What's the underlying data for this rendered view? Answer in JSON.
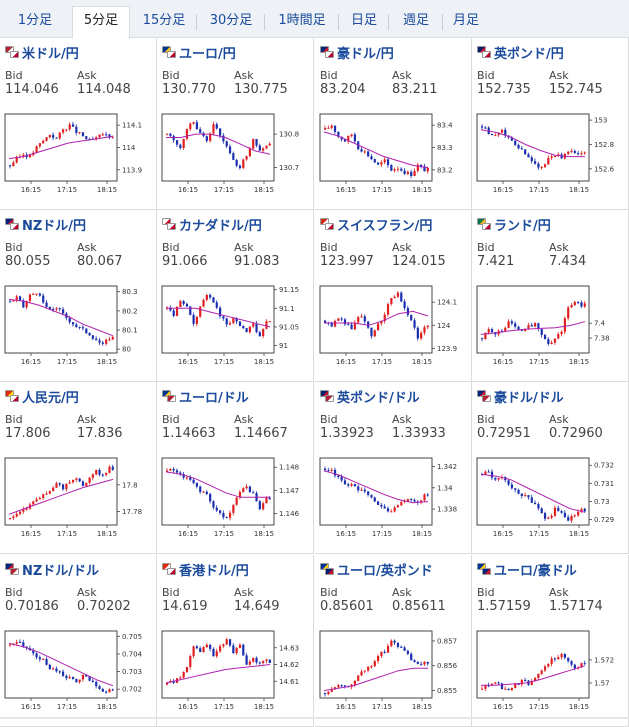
{
  "tabs": [
    {
      "label": "1分足",
      "active": false
    },
    {
      "label": "5分足",
      "active": true
    },
    {
      "label": "15分足",
      "active": false
    },
    {
      "label": "30分足",
      "active": false
    },
    {
      "label": "1時間足",
      "active": false
    },
    {
      "label": "日足",
      "active": false
    },
    {
      "label": "週足",
      "active": false
    },
    {
      "label": "月足",
      "active": false
    }
  ],
  "bid_label": "Bid",
  "ask_label": "Ask",
  "x_ticks": [
    "16:15",
    "17:15",
    "18:15"
  ],
  "colors": {
    "up": "#e02020",
    "down": "#1a2fb0",
    "ma": "#b020b0",
    "link": "#1a4a9c"
  },
  "pairs": [
    {
      "name": "米ドル/円",
      "flags": [
        "us",
        "jp"
      ],
      "bid": "114.046",
      "ask": "114.048",
      "chart_data": {
        "type": "candlestick",
        "ylim": [
          113.85,
          114.15
        ],
        "yticks": [
          "114.1",
          "114",
          "113.9"
        ],
        "yvals": [
          114.1,
          114.0,
          113.9
        ],
        "trend": [
          113.92,
          113.95,
          113.97,
          113.96,
          114.0,
          114.03,
          114.06,
          114.04,
          114.08,
          114.1,
          114.07,
          114.05,
          114.03,
          114.04,
          114.06,
          114.05
        ],
        "ma": [
          113.95,
          113.96,
          113.98,
          114.0,
          114.02,
          114.03,
          114.04,
          114.05
        ]
      }
    },
    {
      "name": "ユーロ/円",
      "flags": [
        "eu",
        "jp"
      ],
      "bid": "130.770",
      "ask": "130.775",
      "chart_data": {
        "type": "candlestick",
        "ylim": [
          130.66,
          130.86
        ],
        "yticks": [
          "130.8",
          "130.7"
        ],
        "yvals": [
          130.8,
          130.7
        ],
        "trend": [
          130.8,
          130.78,
          130.76,
          130.82,
          130.84,
          130.8,
          130.78,
          130.83,
          130.8,
          130.76,
          130.72,
          130.7,
          130.74,
          130.78,
          130.75,
          130.77
        ],
        "ma": [
          130.79,
          130.79,
          130.8,
          130.8,
          130.79,
          130.77,
          130.75,
          130.74
        ]
      }
    },
    {
      "name": "豪ドル/円",
      "flags": [
        "au",
        "jp"
      ],
      "bid": "83.204",
      "ask": "83.211",
      "chart_data": {
        "type": "candlestick",
        "ylim": [
          83.15,
          83.45
        ],
        "yticks": [
          "83.4",
          "83.3",
          "83.2"
        ],
        "yvals": [
          83.4,
          83.3,
          83.2
        ],
        "trend": [
          83.38,
          83.4,
          83.35,
          83.33,
          83.36,
          83.3,
          83.28,
          83.25,
          83.22,
          83.24,
          83.2,
          83.21,
          83.19,
          83.18,
          83.22,
          83.2
        ],
        "ma": [
          83.37,
          83.35,
          83.32,
          83.29,
          83.26,
          83.24,
          83.22,
          83.21
        ]
      }
    },
    {
      "name": "英ポンド/円",
      "flags": [
        "gb",
        "jp"
      ],
      "bid": "152.735",
      "ask": "152.745",
      "chart_data": {
        "type": "candlestick",
        "ylim": [
          152.5,
          153.05
        ],
        "yticks": [
          "153",
          "152.8",
          "152.6"
        ],
        "yvals": [
          153.0,
          152.8,
          152.6
        ],
        "trend": [
          152.95,
          152.9,
          152.88,
          152.92,
          152.85,
          152.8,
          152.75,
          152.7,
          152.65,
          152.6,
          152.68,
          152.72,
          152.7,
          152.75,
          152.72,
          152.74
        ],
        "ma": [
          152.92,
          152.9,
          152.86,
          152.8,
          152.75,
          152.71,
          152.7,
          152.7
        ]
      }
    },
    {
      "name": "NZドル/円",
      "flags": [
        "nz",
        "jp"
      ],
      "bid": "80.055",
      "ask": "80.067",
      "chart_data": {
        "type": "candlestick",
        "ylim": [
          79.98,
          80.33
        ],
        "yticks": [
          "80.3",
          "80.2",
          "80.1",
          "80"
        ],
        "yvals": [
          80.3,
          80.2,
          80.1,
          80.0
        ],
        "trend": [
          80.25,
          80.27,
          80.22,
          80.28,
          80.3,
          80.24,
          80.2,
          80.22,
          80.18,
          80.15,
          80.12,
          80.1,
          80.08,
          80.05,
          80.02,
          80.06
        ],
        "ma": [
          80.26,
          80.25,
          80.23,
          80.2,
          80.17,
          80.13,
          80.1,
          80.07
        ]
      }
    },
    {
      "name": "カナダドル/円",
      "flags": [
        "ca",
        "jp"
      ],
      "bid": "91.066",
      "ask": "91.083",
      "chart_data": {
        "type": "candlestick",
        "ylim": [
          90.98,
          91.16
        ],
        "yticks": [
          "91.15",
          "91.1",
          "91.05",
          "91"
        ],
        "yvals": [
          91.15,
          91.1,
          91.05,
          91.0
        ],
        "trend": [
          91.1,
          91.08,
          91.12,
          91.1,
          91.06,
          91.1,
          91.14,
          91.12,
          91.08,
          91.06,
          91.07,
          91.05,
          91.04,
          91.06,
          91.02,
          91.07
        ],
        "ma": [
          91.1,
          91.1,
          91.1,
          91.09,
          91.08,
          91.07,
          91.06,
          91.05
        ]
      }
    },
    {
      "name": "スイスフラン/円",
      "flags": [
        "ch",
        "jp"
      ],
      "bid": "123.997",
      "ask": "124.015",
      "chart_data": {
        "type": "candlestick",
        "ylim": [
          123.88,
          124.17
        ],
        "yticks": [
          "124.1",
          "124",
          "123.9"
        ],
        "yvals": [
          124.1,
          124.0,
          123.9
        ],
        "trend": [
          124.02,
          124.0,
          124.03,
          124.01,
          123.98,
          124.04,
          124.02,
          123.96,
          124.0,
          124.05,
          124.12,
          124.14,
          124.08,
          124.02,
          123.95,
          124.0
        ],
        "ma": [
          124.01,
          124.01,
          124.01,
          124.0,
          124.02,
          124.05,
          124.06,
          124.04
        ]
      }
    },
    {
      "name": "ランド/円",
      "flags": [
        "za",
        "jp"
      ],
      "bid": "7.421",
      "ask": "7.434",
      "chart_data": {
        "type": "candlestick",
        "ylim": [
          7.36,
          7.45
        ],
        "yticks": [
          "7.4",
          "7.38"
        ],
        "yvals": [
          7.4,
          7.38
        ],
        "trend": [
          7.38,
          7.39,
          7.385,
          7.39,
          7.4,
          7.395,
          7.39,
          7.395,
          7.4,
          7.385,
          7.37,
          7.38,
          7.39,
          7.42,
          7.43,
          7.425
        ],
        "ma": [
          7.385,
          7.387,
          7.39,
          7.392,
          7.393,
          7.394,
          7.397,
          7.402
        ]
      }
    },
    {
      "name": "人民元/円",
      "flags": [
        "cn",
        "jp"
      ],
      "bid": "17.806",
      "ask": "17.836",
      "chart_data": {
        "type": "candlestick",
        "ylim": [
          17.77,
          17.82
        ],
        "yticks": [
          "17.8",
          "17.78"
        ],
        "yvals": [
          17.8,
          17.78
        ],
        "trend": [
          17.775,
          17.778,
          17.782,
          17.785,
          17.79,
          17.792,
          17.795,
          17.8,
          17.798,
          17.802,
          17.805,
          17.8,
          17.806,
          17.81,
          17.808,
          17.812
        ],
        "ma": [
          17.778,
          17.782,
          17.786,
          17.79,
          17.794,
          17.798,
          17.801,
          17.804
        ]
      }
    },
    {
      "name": "ユーロ/ドル",
      "flags": [
        "eu",
        "us"
      ],
      "bid": "1.14663",
      "ask": "1.14667",
      "chart_data": {
        "type": "candlestick",
        "ylim": [
          1.1455,
          1.1484
        ],
        "yticks": [
          "1.148",
          "1.147",
          "1.146"
        ],
        "yvals": [
          1.148,
          1.147,
          1.146
        ],
        "trend": [
          1.1478,
          1.1479,
          1.1477,
          1.1475,
          1.1473,
          1.147,
          1.1468,
          1.1462,
          1.146,
          1.1458,
          1.1463,
          1.147,
          1.1472,
          1.1468,
          1.1462,
          1.1466
        ],
        "ma": [
          1.1478,
          1.1477,
          1.1475,
          1.1472,
          1.1469,
          1.1467,
          1.1467,
          1.1467
        ]
      }
    },
    {
      "name": "英ポンド/ドル",
      "flags": [
        "gb",
        "us"
      ],
      "bid": "1.33923",
      "ask": "1.33933",
      "chart_data": {
        "type": "candlestick",
        "ylim": [
          1.3365,
          1.3428
        ],
        "yticks": [
          "1.342",
          "1.34",
          "1.338"
        ],
        "yvals": [
          1.342,
          1.34,
          1.338
        ],
        "trend": [
          1.3418,
          1.3415,
          1.341,
          1.3405,
          1.3402,
          1.3398,
          1.3395,
          1.339,
          1.3385,
          1.338,
          1.3378,
          1.3382,
          1.3388,
          1.339,
          1.3386,
          1.3392
        ],
        "ma": [
          1.3416,
          1.3412,
          1.3406,
          1.34,
          1.3394,
          1.3389,
          1.3386,
          1.3387
        ]
      }
    },
    {
      "name": "豪ドル/ドル",
      "flags": [
        "au",
        "us"
      ],
      "bid": "0.72951",
      "ask": "0.72960",
      "chart_data": {
        "type": "candlestick",
        "ylim": [
          0.7287,
          0.7324
        ],
        "yticks": [
          "0.732",
          "0.731",
          "0.73",
          "0.729"
        ],
        "yvals": [
          0.732,
          0.731,
          0.73,
          0.729
        ],
        "trend": [
          0.7315,
          0.7316,
          0.7312,
          0.7314,
          0.731,
          0.7306,
          0.7304,
          0.7302,
          0.7298,
          0.7293,
          0.729,
          0.7296,
          0.7294,
          0.729,
          0.7292,
          0.7295
        ],
        "ma": [
          0.7315,
          0.7314,
          0.7312,
          0.7308,
          0.7304,
          0.73,
          0.7296,
          0.7294
        ]
      }
    },
    {
      "name": "NZドル/ドル",
      "flags": [
        "nz",
        "us"
      ],
      "bid": "0.70186",
      "ask": "0.70202",
      "chart_data": {
        "type": "candlestick",
        "ylim": [
          0.7015,
          0.7053
        ],
        "yticks": [
          "0.705",
          "0.704",
          "0.703",
          "0.702"
        ],
        "yvals": [
          0.705,
          0.704,
          0.703,
          0.702
        ],
        "trend": [
          0.7045,
          0.7047,
          0.7044,
          0.7042,
          0.7038,
          0.7036,
          0.7032,
          0.703,
          0.7028,
          0.7026,
          0.7024,
          0.7028,
          0.7025,
          0.7022,
          0.7018,
          0.7019
        ],
        "ma": [
          0.7046,
          0.7044,
          0.7041,
          0.7037,
          0.7033,
          0.7029,
          0.7025,
          0.7022
        ]
      }
    },
    {
      "name": "香港ドル/円",
      "flags": [
        "hk",
        "jp"
      ],
      "bid": "14.619",
      "ask": "14.649",
      "chart_data": {
        "type": "candlestick",
        "ylim": [
          14.6,
          14.64
        ],
        "yticks": [
          "14.63",
          "14.62",
          "14.61"
        ],
        "yvals": [
          14.63,
          14.62,
          14.61
        ],
        "trend": [
          14.608,
          14.61,
          14.612,
          14.618,
          14.63,
          14.628,
          14.632,
          14.625,
          14.63,
          14.634,
          14.628,
          14.632,
          14.62,
          14.624,
          14.62,
          14.622
        ],
        "ma": [
          14.609,
          14.611,
          14.613,
          14.615,
          14.617,
          14.618,
          14.619,
          14.62
        ]
      }
    },
    {
      "name": "ユーロ/英ポンド",
      "flags": [
        "eu",
        "gb"
      ],
      "bid": "0.85601",
      "ask": "0.85611",
      "chart_data": {
        "type": "candlestick",
        "ylim": [
          0.8547,
          0.8574
        ],
        "yticks": [
          "0.857",
          "0.856",
          "0.855"
        ],
        "yvals": [
          0.857,
          0.856,
          0.855
        ],
        "trend": [
          0.8549,
          0.855,
          0.8552,
          0.8551,
          0.8553,
          0.8556,
          0.8558,
          0.856,
          0.8564,
          0.8566,
          0.857,
          0.8568,
          0.8566,
          0.8562,
          0.856,
          0.8561
        ],
        "ma": [
          0.855,
          0.8551,
          0.8552,
          0.8554,
          0.8556,
          0.8558,
          0.8559,
          0.8559
        ]
      }
    },
    {
      "name": "ユーロ/豪ドル",
      "flags": [
        "eu",
        "au"
      ],
      "bid": "1.57159",
      "ask": "1.57174",
      "chart_data": {
        "type": "candlestick",
        "ylim": [
          1.5687,
          1.5745
        ],
        "yticks": [
          "1.572",
          "1.57"
        ],
        "yvals": [
          1.572,
          1.57
        ],
        "trend": [
          1.5695,
          1.5698,
          1.57,
          1.5696,
          1.5694,
          1.5698,
          1.5702,
          1.5699,
          1.5706,
          1.5712,
          1.5718,
          1.5722,
          1.5725,
          1.5718,
          1.5714,
          1.5716
        ],
        "ma": [
          1.5698,
          1.5698,
          1.5699,
          1.57,
          1.5703,
          1.5707,
          1.5711,
          1.5715
        ]
      }
    }
  ]
}
